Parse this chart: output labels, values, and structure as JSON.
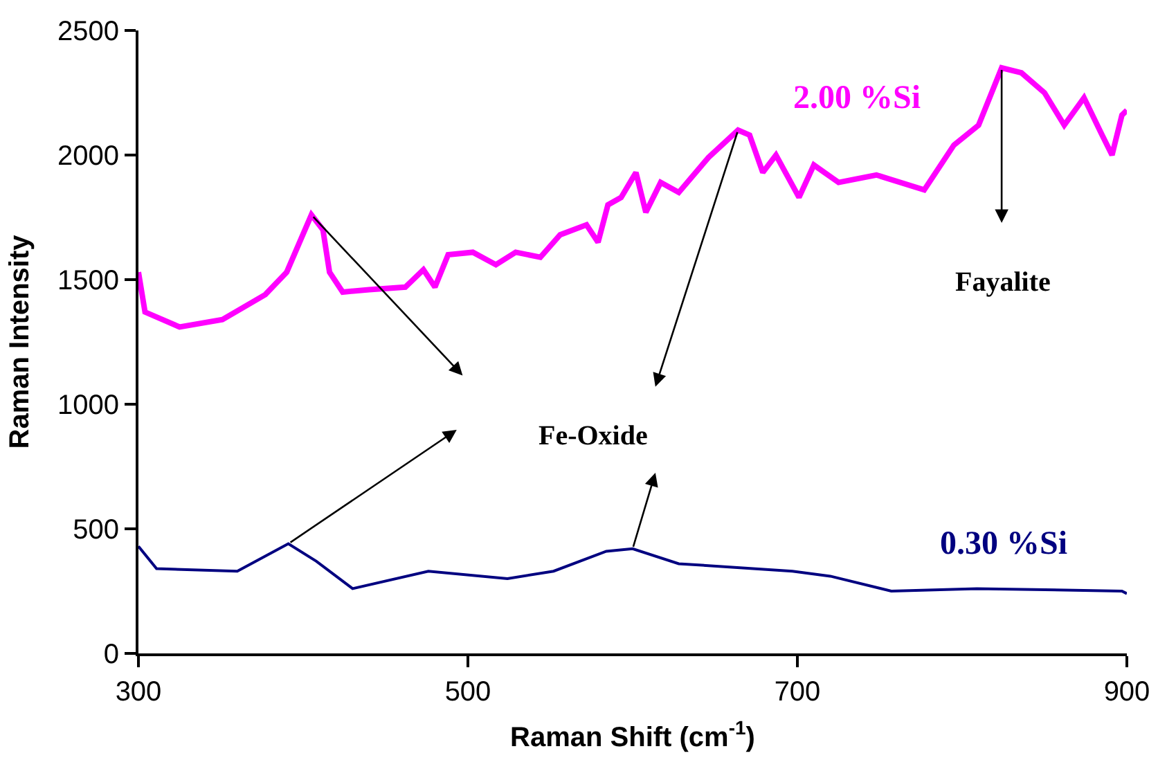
{
  "chart_data": {
    "type": "line",
    "xlabel": "Raman Shift (cm$^{-1}$)",
    "ylabel": "Raman Intensity",
    "xlim": [
      300,
      900
    ],
    "xticks": [
      300,
      500,
      700,
      900
    ],
    "ylim": [
      0,
      2500
    ],
    "yticks": [
      0,
      500,
      1000,
      1500,
      2000,
      2500
    ],
    "grid": false,
    "legend": false,
    "marker": "none",
    "line_style": "solid",
    "series": [
      {
        "name": "2.00 %Si",
        "color": "#ff00ff",
        "x": [
          300,
          304,
          325,
          351,
          377,
          390,
          405,
          412,
          416,
          424,
          440,
          462,
          473,
          480,
          488,
          503,
          517,
          529,
          544,
          556,
          572,
          579,
          585,
          593,
          602,
          608,
          617,
          628,
          646,
          664,
          671,
          679,
          687,
          701,
          710,
          725,
          748,
          777,
          795,
          810,
          824,
          836,
          850,
          862,
          874,
          885,
          891,
          897,
          900
        ],
        "values": [
          1530,
          1370,
          1310,
          1340,
          1440,
          1530,
          1760,
          1700,
          1530,
          1450,
          1460,
          1470,
          1540,
          1470,
          1600,
          1610,
          1560,
          1610,
          1590,
          1680,
          1720,
          1650,
          1800,
          1830,
          1930,
          1770,
          1890,
          1850,
          1990,
          2100,
          2080,
          1930,
          2000,
          1830,
          1960,
          1890,
          1920,
          1860,
          2040,
          2120,
          2350,
          2330,
          2250,
          2120,
          2230,
          2080,
          2000,
          2160,
          2180
        ]
      },
      {
        "name": "0.30 %Si",
        "color": "#000080",
        "x": [
          300,
          311,
          360,
          391,
          408,
          430,
          476,
          524,
          552,
          584,
          600,
          628,
          697,
          720,
          757,
          809,
          897,
          900
        ],
        "values": [
          430,
          340,
          330,
          440,
          370,
          260,
          330,
          300,
          330,
          410,
          420,
          360,
          330,
          310,
          250,
          260,
          250,
          240
        ]
      }
    ],
    "annotations": [
      "Fe-Oxide",
      "Fayalite"
    ]
  }
}
